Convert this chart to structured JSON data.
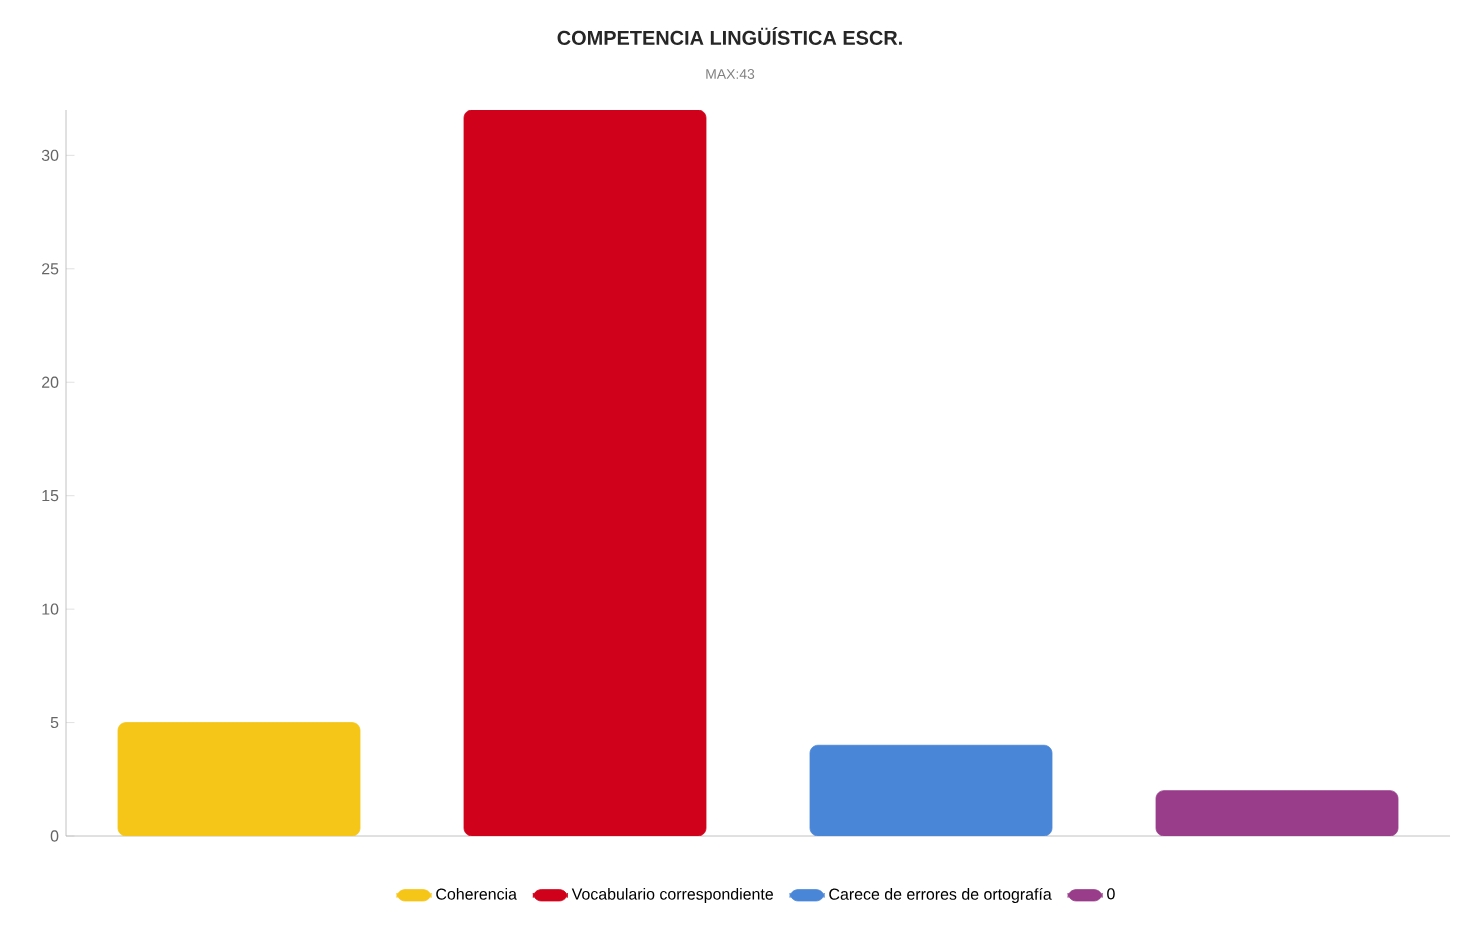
{
  "chart_data": {
    "type": "bar",
    "title": "COMPETENCIA LINGÜÍSTICA ESCR.",
    "subtitle": "MAX:43",
    "categories": [
      null,
      null,
      null,
      null
    ],
    "series": [
      {
        "name": "Coherencia",
        "color": "#f5c518",
        "values": [
          5,
          null,
          null,
          null
        ]
      },
      {
        "name": "Vocabulario correspondiente",
        "color": "#d0021b",
        "values": [
          null,
          32,
          null,
          null
        ]
      },
      {
        "name": "Carece de errores de ortografía",
        "color": "#4a86d8",
        "values": [
          null,
          null,
          4,
          null
        ]
      },
      {
        "name": "0",
        "color": "#993d8a",
        "values": [
          null,
          null,
          null,
          2
        ]
      }
    ],
    "ylim": [
      0,
      32
    ],
    "yticks": [
      0,
      5,
      10,
      15,
      20,
      25,
      30
    ],
    "legend": "bottom"
  }
}
